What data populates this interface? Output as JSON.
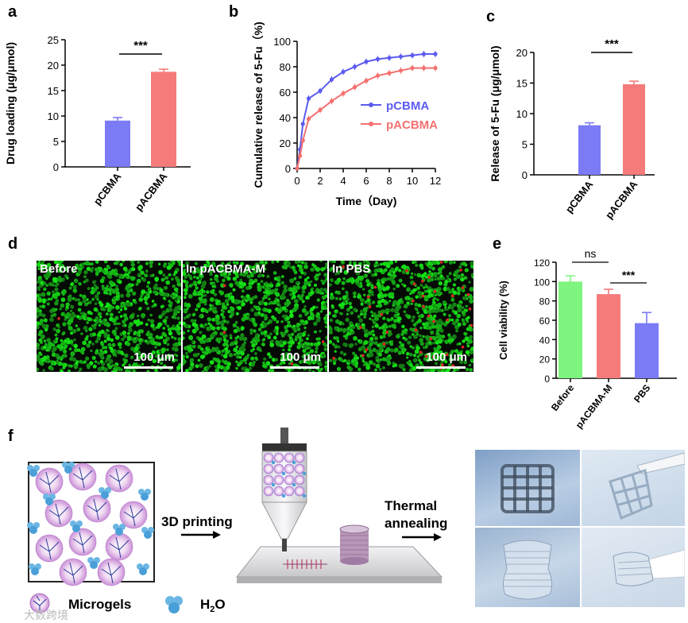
{
  "panels": {
    "a": "a",
    "b": "b",
    "c": "c",
    "d": "d",
    "e": "e",
    "f": "f"
  },
  "chart_data": [
    {
      "id": "a",
      "type": "bar",
      "ylabel": "Drug loading (μg/μmol)",
      "categories": [
        "pCBMA",
        "pACBMA"
      ],
      "values": [
        9.1,
        18.7
      ],
      "errors": [
        0.6,
        0.5
      ],
      "colors": [
        "#7b7bf5",
        "#f57b7b"
      ],
      "ylim": [
        0,
        25
      ],
      "yticks": [
        "0",
        "5",
        "10",
        "15",
        "20",
        "25"
      ],
      "significance": "***"
    },
    {
      "id": "b",
      "type": "line",
      "xlabel": "Time（Day)",
      "ylabel": "Cumulative release of 5-Fu（%)",
      "xlim": [
        0,
        12
      ],
      "ylim": [
        0,
        100
      ],
      "xticks": [
        "0",
        "2",
        "4",
        "6",
        "8",
        "10",
        "12"
      ],
      "yticks": [
        "0",
        "20",
        "40",
        "60",
        "80",
        "100"
      ],
      "series": [
        {
          "name": "pCBMA",
          "color": "#5b5bf0",
          "x": [
            0,
            0.25,
            0.5,
            1,
            2,
            3,
            4,
            5,
            6,
            7,
            8,
            9,
            10,
            11,
            12
          ],
          "y": [
            0,
            15,
            35,
            55,
            61,
            70,
            76,
            80,
            84,
            86,
            87,
            88,
            89,
            90,
            90
          ]
        },
        {
          "name": "pACBMA",
          "color": "#f57070",
          "x": [
            0,
            0.25,
            0.5,
            1,
            2,
            3,
            4,
            5,
            6,
            7,
            8,
            9,
            10,
            11,
            12
          ],
          "y": [
            0,
            10,
            22,
            39,
            46,
            53,
            59,
            64,
            69,
            73,
            75,
            77,
            79,
            79,
            79
          ]
        }
      ]
    },
    {
      "id": "c",
      "type": "bar",
      "ylabel": "Release of 5-Fu (μg/μmol)",
      "categories": [
        "pCBMA",
        "pACBMA"
      ],
      "values": [
        8.1,
        14.8
      ],
      "errors": [
        0.4,
        0.5
      ],
      "colors": [
        "#7b7bf5",
        "#f57b7b"
      ],
      "ylim": [
        0,
        20
      ],
      "yticks": [
        "0",
        "5",
        "10",
        "15",
        "20"
      ],
      "significance": "***"
    },
    {
      "id": "e",
      "type": "bar",
      "ylabel": "Cell viability (%)",
      "categories": [
        "Before",
        "pACBMA-M",
        "PBS"
      ],
      "values": [
        100,
        87,
        57
      ],
      "errors": [
        6,
        5,
        11
      ],
      "colors": [
        "#7ef57e",
        "#f57b7b",
        "#7b7bf5"
      ],
      "ylim": [
        0,
        120
      ],
      "yticks": [
        "0",
        "20",
        "40",
        "60",
        "80",
        "100",
        "120"
      ],
      "significance": [
        "ns",
        "***"
      ]
    }
  ],
  "micrographs": [
    {
      "label": "Before",
      "scale": "100 μm"
    },
    {
      "label": "In pACBMA-M",
      "scale": "100 μm"
    },
    {
      "label": "In PBS",
      "scale": "100 μm"
    }
  ],
  "schematic": {
    "step1": "3D printing",
    "step2_line1": "Thermal",
    "step2_line2": "annealing",
    "legend_microgels": "Microgels",
    "legend_water": "H",
    "legend_water_sub": "2",
    "legend_water_end": "O"
  },
  "watermark": "大数跨境"
}
